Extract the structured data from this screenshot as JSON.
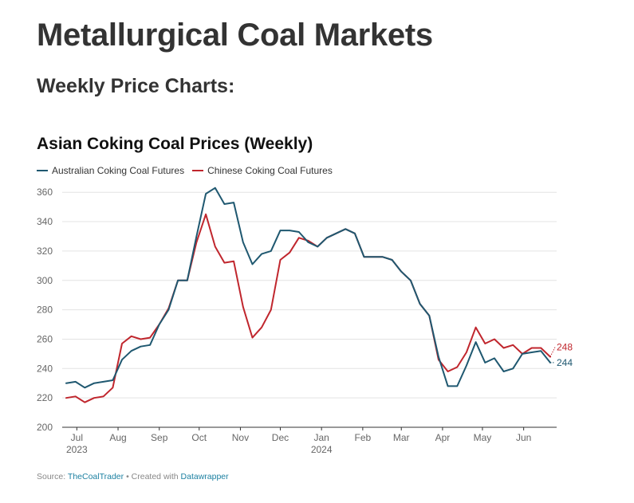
{
  "page": {
    "title": "Metallurgical Coal Markets",
    "section_title": "Weekly Price Charts:"
  },
  "chart_data": {
    "type": "line",
    "title": "Asian Coking Coal Prices (Weekly)",
    "xlabel": "",
    "ylabel": "",
    "ylim": [
      200,
      365
    ],
    "yticks": [
      200,
      220,
      240,
      260,
      280,
      300,
      320,
      340,
      360
    ],
    "grid": true,
    "legend_position": "top-left",
    "x_start": "2023-06-26",
    "x_tick_labels": [
      {
        "label": "Jul",
        "sublabel": "2023",
        "date": "2023-07-01"
      },
      {
        "label": "Aug",
        "sublabel": "",
        "date": "2023-08-01"
      },
      {
        "label": "Sep",
        "sublabel": "",
        "date": "2023-09-01"
      },
      {
        "label": "Oct",
        "sublabel": "",
        "date": "2023-10-01"
      },
      {
        "label": "Nov",
        "sublabel": "",
        "date": "2023-11-01"
      },
      {
        "label": "Dec",
        "sublabel": "",
        "date": "2023-12-01"
      },
      {
        "label": "Jan",
        "sublabel": "2024",
        "date": "2024-01-01"
      },
      {
        "label": "Feb",
        "sublabel": "",
        "date": "2024-02-01"
      },
      {
        "label": "Mar",
        "sublabel": "",
        "date": "2024-03-01"
      },
      {
        "label": "Apr",
        "sublabel": "",
        "date": "2024-04-01"
      },
      {
        "label": "May",
        "sublabel": "",
        "date": "2024-05-01"
      },
      {
        "label": "Jun",
        "sublabel": "",
        "date": "2024-06-01"
      }
    ],
    "x_end": "2024-06-24",
    "series": [
      {
        "name": "Australian Coking Coal Futures",
        "color": "#1f5870",
        "end_label": "244",
        "values": [
          230,
          231,
          227,
          230,
          231,
          232,
          246,
          252,
          255,
          256,
          270,
          280,
          300,
          300,
          330,
          359,
          363,
          352,
          353,
          326,
          311,
          318,
          320,
          334,
          334,
          333,
          326,
          323,
          329,
          332,
          335,
          332,
          316,
          316,
          316,
          314,
          306,
          300,
          284,
          276,
          248,
          228,
          228,
          242,
          258,
          244,
          247,
          238,
          240,
          250,
          251,
          252,
          244
        ]
      },
      {
        "name": "Chinese Coking Coal Futures",
        "color": "#c0262d",
        "end_label": "248",
        "values": [
          220,
          221,
          217,
          220,
          221,
          227,
          257,
          262,
          260,
          261,
          270,
          281,
          300,
          300,
          326,
          345,
          323,
          312,
          313,
          282,
          261,
          268,
          280,
          314,
          319,
          329,
          327,
          323,
          329,
          332,
          335,
          332,
          316,
          316,
          316,
          314,
          306,
          300,
          284,
          276,
          246,
          238,
          241,
          251,
          268,
          257,
          260,
          254,
          256,
          250,
          254,
          254,
          248
        ]
      }
    ]
  },
  "footer": {
    "source_label": "Source: ",
    "source_link": "TheCoalTrader",
    "separator": " • Created with ",
    "tool_link": "Datawrapper"
  }
}
